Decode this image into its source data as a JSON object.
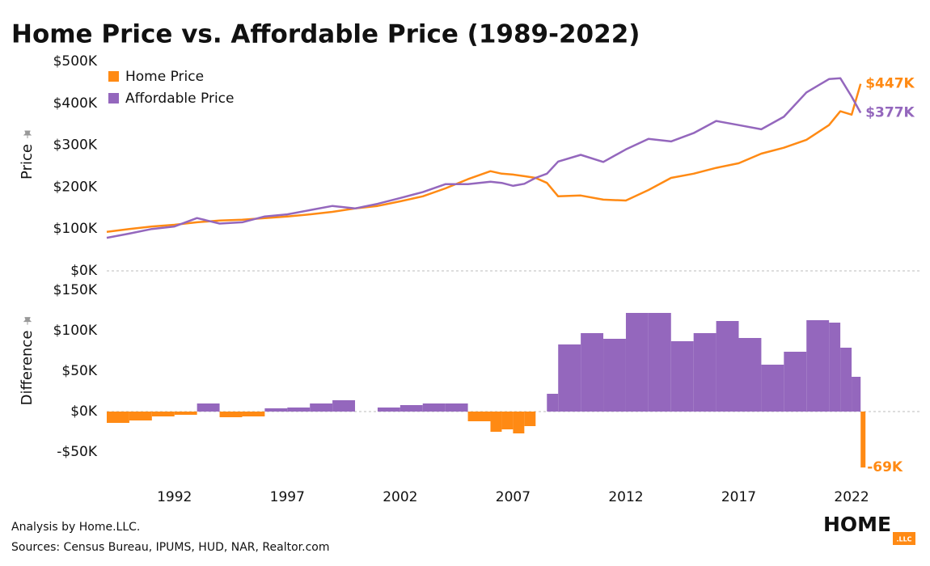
{
  "chart_data": [
    {
      "type": "line",
      "title": "Home Price vs. Affordable Price (1989-2022)",
      "y_label": "Price",
      "x": [
        1989,
        1990,
        1991,
        1992,
        1993,
        1994,
        1995,
        1996,
        1997,
        1998,
        1999,
        2000,
        2001,
        2002,
        2003,
        2004,
        2005,
        2006,
        2006.5,
        2007,
        2007.5,
        2008,
        2008.5,
        2009,
        2010,
        2011,
        2012,
        2013,
        2014,
        2015,
        2016,
        2017,
        2018,
        2019,
        2020,
        2021,
        2021.5,
        2022,
        2022.4
      ],
      "series": [
        {
          "name": "Home Price",
          "color": "#ff8a14",
          "values": [
            93000,
            100000,
            106000,
            110000,
            116000,
            120000,
            122000,
            126000,
            130000,
            135000,
            141000,
            149000,
            155000,
            166000,
            178000,
            197000,
            219000,
            238000,
            232000,
            230000,
            226000,
            222000,
            210000,
            178000,
            180000,
            170000,
            168000,
            193000,
            222000,
            232000,
            246000,
            257000,
            280000,
            294000,
            313000,
            348000,
            381000,
            373000,
            446600
          ],
          "value_labels": [
            null,
            null,
            null,
            null,
            null,
            null,
            null,
            null,
            null,
            null,
            null,
            null,
            null,
            null,
            null,
            null,
            null,
            null,
            null,
            null,
            null,
            null,
            null,
            null,
            null,
            null,
            null,
            null,
            null,
            null,
            null,
            null,
            null,
            null,
            null,
            null,
            null,
            null,
            "$447K"
          ]
        },
        {
          "name": "Affordable Price",
          "color": "#9467bd",
          "values": [
            79000,
            89000,
            100000,
            106000,
            126000,
            113000,
            116000,
            130000,
            135000,
            145000,
            155000,
            149000,
            160000,
            174000,
            188000,
            207000,
            207000,
            213000,
            210000,
            203000,
            208000,
            222000,
            232000,
            261000,
            277000,
            260000,
            290000,
            315000,
            309000,
            329000,
            358000,
            348000,
            338000,
            368000,
            426000,
            458000,
            460000,
            416000,
            377400
          ],
          "value_labels": [
            null,
            null,
            null,
            null,
            null,
            null,
            null,
            null,
            null,
            null,
            null,
            null,
            null,
            null,
            null,
            null,
            null,
            null,
            null,
            null,
            null,
            null,
            null,
            null,
            null,
            null,
            null,
            null,
            null,
            null,
            null,
            null,
            null,
            null,
            null,
            null,
            null,
            null,
            "$377K"
          ]
        }
      ],
      "xlim": [
        1989,
        2024.9
      ],
      "ylim": [
        0,
        500000
      ],
      "yticks": [
        {
          "value": 0,
          "label": "$0K"
        },
        {
          "value": 100000,
          "label": "$100K"
        },
        {
          "value": 200000,
          "label": "$200K"
        },
        {
          "value": 300000,
          "label": "$300K"
        },
        {
          "value": 400000,
          "label": "$400K"
        },
        {
          "value": 500000,
          "label": "$500K"
        }
      ],
      "legend": "top-left"
    },
    {
      "type": "bar",
      "y_label": "Difference",
      "x": [
        1989,
        1990,
        1991,
        1992,
        1993,
        1994,
        1995,
        1996,
        1997,
        1998,
        1999,
        2000,
        2001,
        2002,
        2003,
        2004,
        2005,
        2006,
        2006.5,
        2007,
        2007.5,
        2008,
        2008.5,
        2009,
        2010,
        2011,
        2012,
        2013,
        2014,
        2015,
        2016,
        2017,
        2018,
        2019,
        2020,
        2021,
        2021.5,
        2022,
        2022.4
      ],
      "values": [
        -14000,
        -11000,
        -6000,
        -4000,
        10000,
        -7000,
        -6000,
        4000,
        5000,
        10000,
        14000,
        0,
        5000,
        8000,
        10000,
        10000,
        -12000,
        -25000,
        -22000,
        -27000,
        -18000,
        0,
        22000,
        83000,
        97000,
        90000,
        122000,
        122000,
        87000,
        97000,
        112000,
        91000,
        58000,
        74000,
        113000,
        110000,
        79000,
        43000,
        -69200
      ],
      "value_labels": [
        null,
        null,
        null,
        null,
        null,
        null,
        null,
        null,
        null,
        null,
        null,
        null,
        null,
        null,
        null,
        null,
        null,
        null,
        null,
        null,
        null,
        null,
        null,
        null,
        null,
        null,
        null,
        null,
        null,
        null,
        null,
        null,
        null,
        null,
        null,
        null,
        null,
        null,
        "-69K"
      ],
      "positive_color": "#9467bd",
      "negative_color": "#ff8a14",
      "xlim": [
        1989,
        2024.9
      ],
      "ylim": [
        -80000,
        160000
      ],
      "xticks": [
        1992,
        1997,
        2002,
        2007,
        2012,
        2017,
        2022
      ],
      "yticks": [
        {
          "value": -50000,
          "label": "-$50K"
        },
        {
          "value": 0,
          "label": "$0K"
        },
        {
          "value": 50000,
          "label": "$50K"
        },
        {
          "value": 100000,
          "label": "$100K"
        },
        {
          "value": 150000,
          "label": "$150K"
        }
      ]
    }
  ],
  "footer": {
    "analysis": "Analysis by Home.LLC.",
    "sources": "Sources: Census Bureau, IPUMS, HUD, NAR, Realtor.com",
    "logo": "HOME",
    "logo_suffix": ".LLC"
  }
}
